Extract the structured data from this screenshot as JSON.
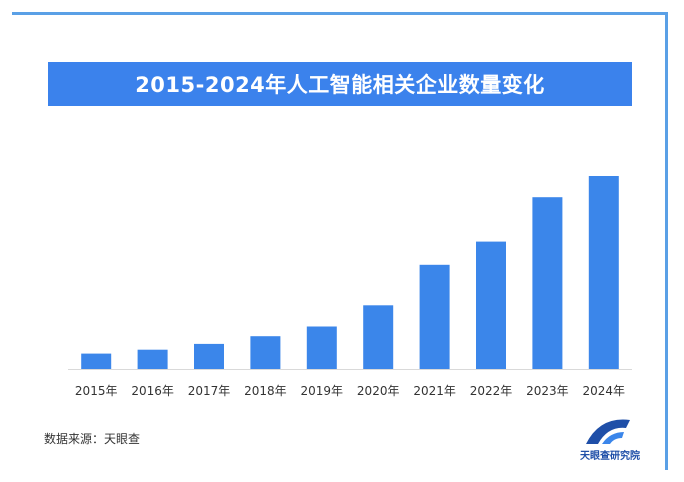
{
  "title": "2015-2024年人工智能相关企业数量变化",
  "source": "数据来源：天眼查",
  "logo_text": "天眼查研究院",
  "colors": {
    "bar": "#3b86ea",
    "title_bg": "#3b82ec",
    "frame": "#5aa0e6"
  },
  "chart_data": {
    "type": "bar",
    "title": "2015-2024年人工智能相关企业数量变化",
    "categories": [
      "2015年",
      "2016年",
      "2017年",
      "2018年",
      "2019年",
      "2020年",
      "2021年",
      "2022年",
      "2023年",
      "2024年"
    ],
    "values": [
      8,
      10,
      13,
      17,
      22,
      33,
      54,
      66,
      89,
      100
    ],
    "ylim": [
      0,
      100
    ],
    "grid": false,
    "legend": "none"
  }
}
